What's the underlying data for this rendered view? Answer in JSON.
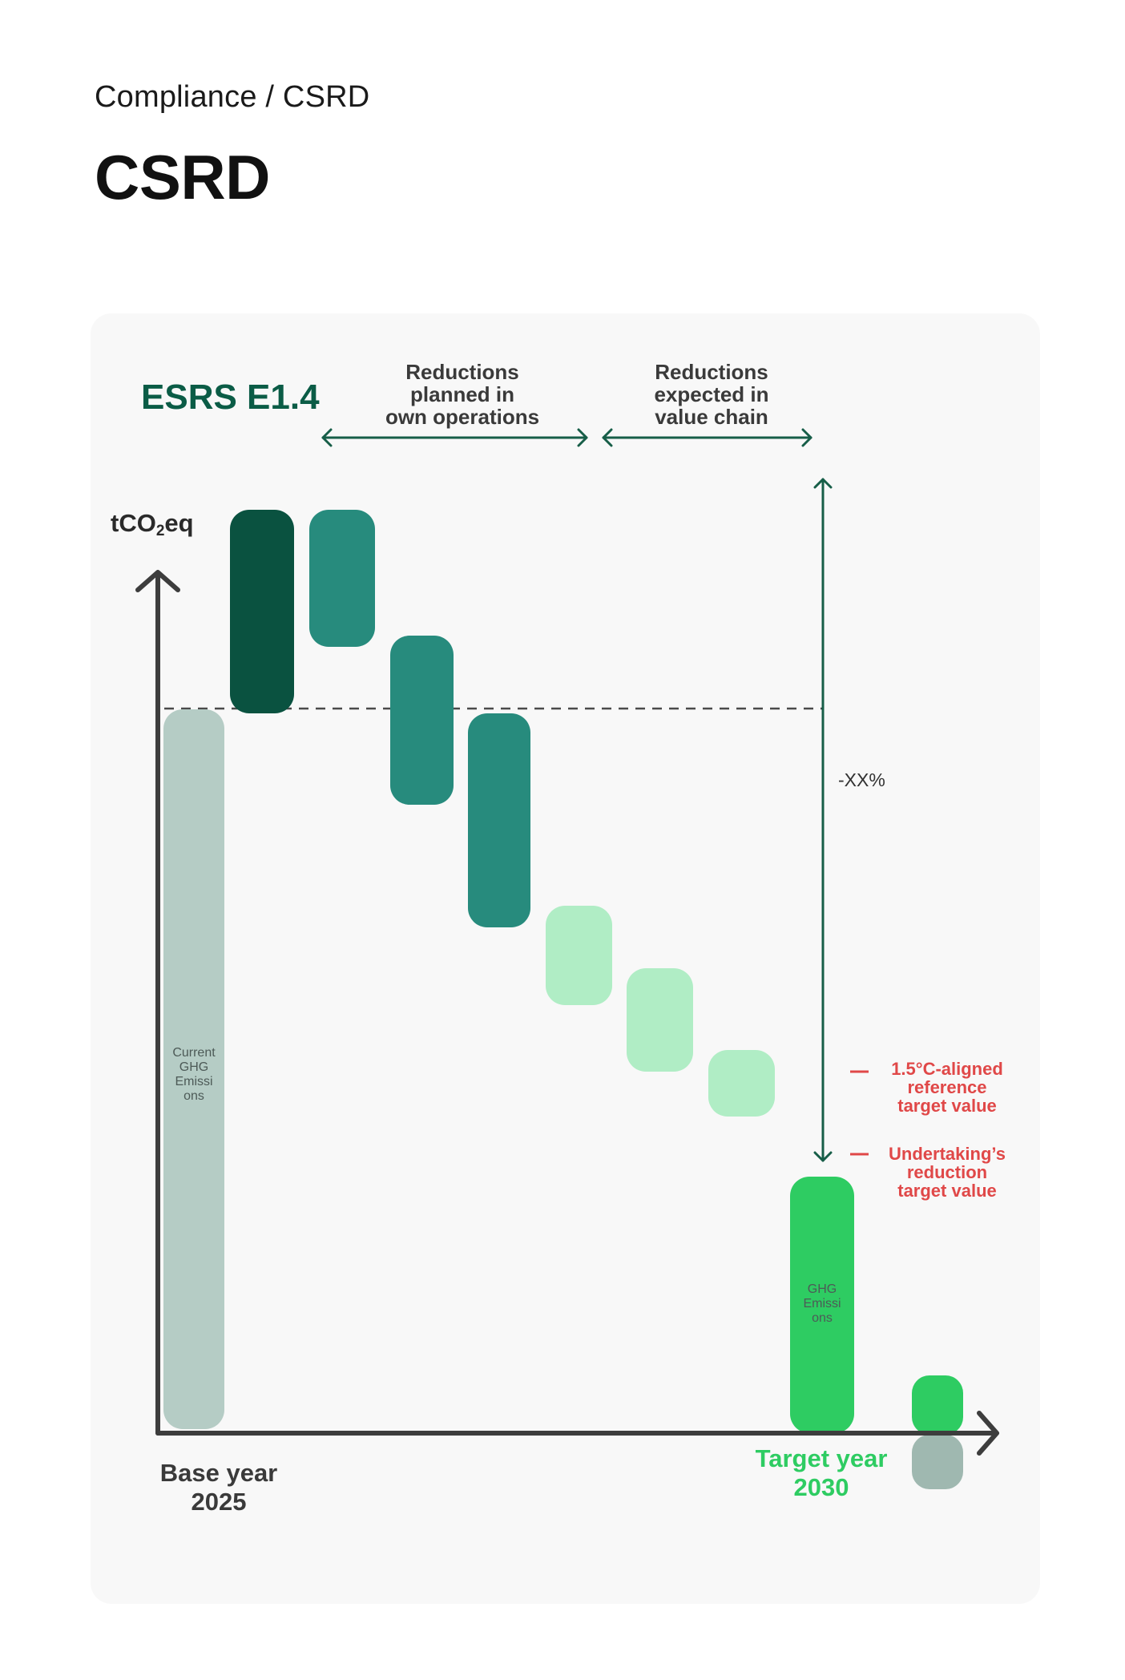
{
  "breadcrumb": "Compliance / CSRD",
  "page_title": "CSRD",
  "diagram": {
    "title": "ESRS E1.4",
    "y_axis_unit": "tCO₂eq",
    "sections": {
      "own_operations": [
        "Reductions",
        "planned in",
        "own operations"
      ],
      "value_chain": [
        "Reductions",
        "expected in",
        "value chain"
      ]
    },
    "bar_labels": {
      "current": [
        "Current",
        "GHG",
        "Emissi",
        "ons"
      ],
      "target": [
        "GHG",
        "Emissi",
        "ons"
      ]
    },
    "reduction_percent": "-XX%",
    "legend": {
      "reference": [
        "1.5°C-aligned",
        "reference",
        "target value"
      ],
      "undertaking": [
        "Undertaking’s",
        "reduction",
        "target value"
      ]
    },
    "base_year": [
      "Base year",
      "2025"
    ],
    "target_year": [
      "Target year",
      "2030"
    ],
    "colors": {
      "current_emissions": "#b5ccc5",
      "increase": "#0a5240",
      "own_operations_reduction": "#278b7d",
      "value_chain_reduction": "#b0edc5",
      "target_emissions": "#2ecc62",
      "reference_marker": "#9fb8b0",
      "annotation": "#e04848",
      "arrow": "#175e48",
      "axis": "#3d3d3d"
    }
  }
}
